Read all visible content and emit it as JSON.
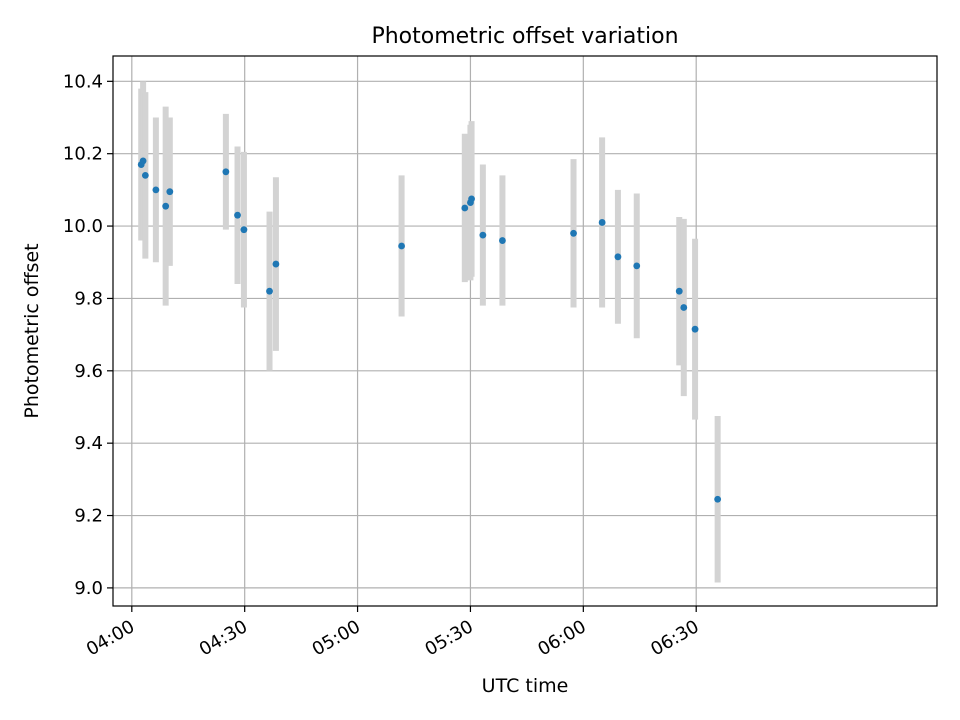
{
  "chart_data": {
    "type": "scatter",
    "title": "Photometric offset variation",
    "xlabel": "UTC time",
    "ylabel": "Photometric offset",
    "grid": true,
    "xlim": [
      "03:55",
      "07:34"
    ],
    "ylim": [
      8.95,
      10.47
    ],
    "x_ticks": [
      "04:00",
      "04:30",
      "05:00",
      "05:30",
      "06:00",
      "06:30"
    ],
    "y_ticks": [
      "9.0",
      "9.2",
      "9.4",
      "9.6",
      "9.8",
      "10.0",
      "10.2",
      "10.4"
    ],
    "colors": {
      "point": "#1f77b4",
      "errorbar": "#d3d3d3",
      "grid": "#b0b0b0"
    },
    "series": [
      {
        "points": [
          {
            "x": "04:02:30",
            "y": 10.17,
            "err": 0.21
          },
          {
            "x": "04:03:00",
            "y": 10.18,
            "err": 0.22
          },
          {
            "x": "04:03:36",
            "y": 10.14,
            "err": 0.23
          },
          {
            "x": "04:06:24",
            "y": 10.1,
            "err": 0.2
          },
          {
            "x": "04:09:00",
            "y": 10.055,
            "err": 0.275
          },
          {
            "x": "04:10:06",
            "y": 10.095,
            "err": 0.205
          },
          {
            "x": "04:25:00",
            "y": 10.15,
            "err": 0.16
          },
          {
            "x": "04:28:06",
            "y": 10.03,
            "err": 0.19
          },
          {
            "x": "04:29:48",
            "y": 9.99,
            "err": 0.215
          },
          {
            "x": "04:36:36",
            "y": 9.82,
            "err": 0.22
          },
          {
            "x": "04:38:18",
            "y": 9.895,
            "err": 0.24
          },
          {
            "x": "05:11:42",
            "y": 9.945,
            "err": 0.195
          },
          {
            "x": "05:28:30",
            "y": 10.05,
            "err": 0.205
          },
          {
            "x": "05:30:00",
            "y": 10.065,
            "err": 0.215
          },
          {
            "x": "05:30:18",
            "y": 10.075,
            "err": 0.215
          },
          {
            "x": "05:33:18",
            "y": 9.975,
            "err": 0.195
          },
          {
            "x": "05:38:30",
            "y": 9.96,
            "err": 0.18
          },
          {
            "x": "05:57:24",
            "y": 9.98,
            "err": 0.205
          },
          {
            "x": "06:05:00",
            "y": 10.01,
            "err": 0.235
          },
          {
            "x": "06:09:12",
            "y": 9.915,
            "err": 0.185
          },
          {
            "x": "06:14:12",
            "y": 9.89,
            "err": 0.2
          },
          {
            "x": "06:25:30",
            "y": 9.82,
            "err": 0.205
          },
          {
            "x": "06:26:42",
            "y": 9.775,
            "err": 0.245
          },
          {
            "x": "06:29:42",
            "y": 9.715,
            "err": 0.25
          },
          {
            "x": "06:35:42",
            "y": 9.245,
            "err": 0.23
          }
        ]
      }
    ]
  }
}
